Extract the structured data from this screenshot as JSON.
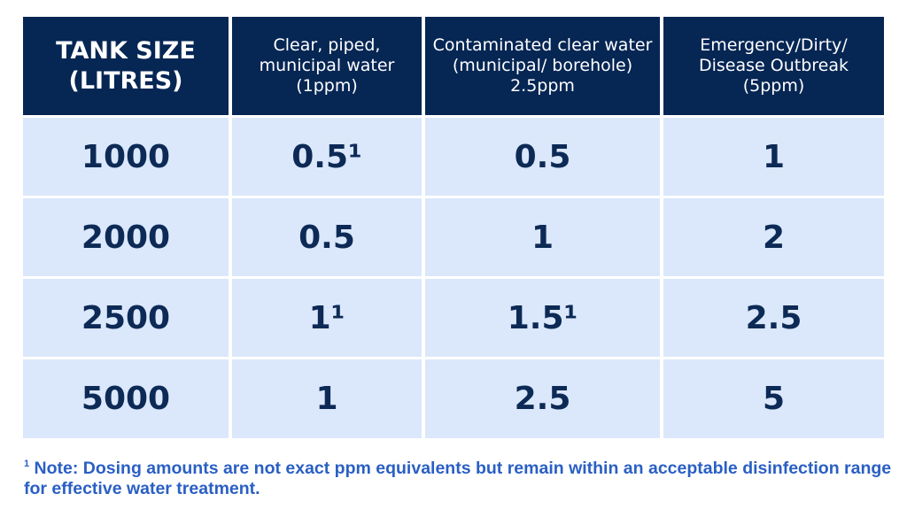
{
  "table": {
    "headers": [
      "TANK SIZE (LITRES)",
      "Clear, piped, municipal water (1ppm)",
      "Contaminated clear water (municipal/ borehole) 2.5ppm",
      "Emergency/Dirty/ Disease Outbreak (5ppm)"
    ],
    "rows": [
      [
        "1000",
        "0.5¹",
        "0.5",
        "1"
      ],
      [
        "2000",
        "0.5",
        "1",
        "2"
      ],
      [
        "2500",
        "1¹",
        "1.5¹",
        "2.5"
      ],
      [
        "5000",
        "1",
        "2.5",
        "5"
      ]
    ]
  },
  "footnote": {
    "marker": "1",
    "text": "Note: Dosing amounts are not exact ppm equivalents but remain within an acceptable disinfection range for effective water treatment."
  },
  "colors": {
    "header_bg": "#062654",
    "cell_bg": "#dbe7fb",
    "cell_text": "#0c2a55",
    "footnote_text": "#2a5fc4"
  }
}
